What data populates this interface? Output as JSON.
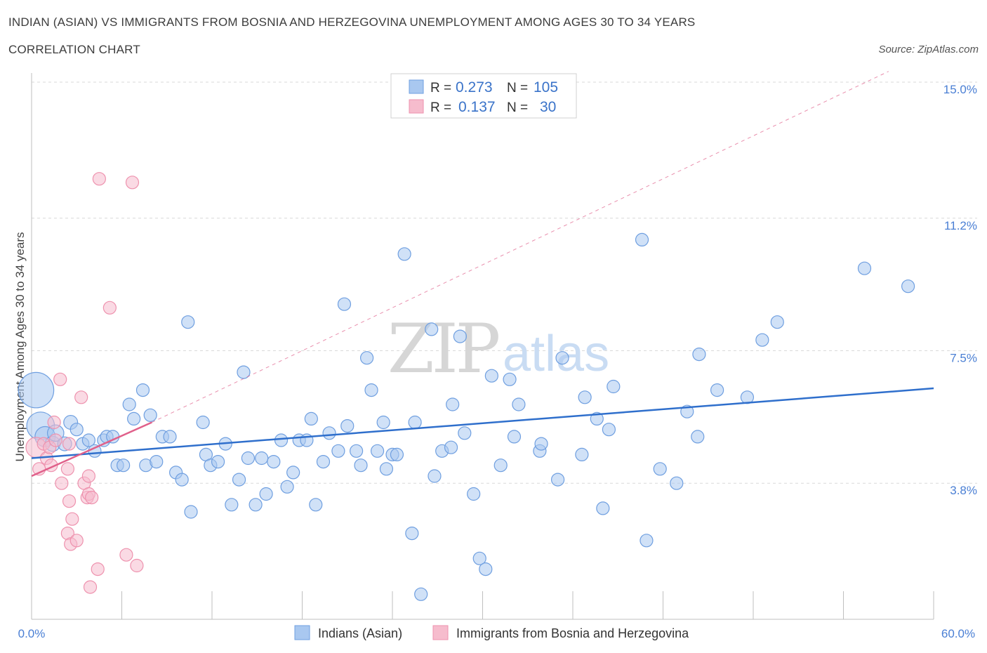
{
  "header": {
    "title": "INDIAN (ASIAN) VS IMMIGRANTS FROM BOSNIA AND HERZEGOVINA UNEMPLOYMENT AMONG AGES 30 TO 34 YEARS",
    "subtitle": "CORRELATION CHART",
    "source": "Source: ZipAtlas.com"
  },
  "watermark": {
    "zip": "ZIP",
    "atlas": "atlas"
  },
  "colors": {
    "blue_fill": "#a9c8f0",
    "blue_stroke": "#6f9fe0",
    "blue_line": "#2f6fcc",
    "pink_fill": "#f6bccd",
    "pink_stroke": "#ee92ae",
    "pink_line": "#e0608a",
    "grid": "#d9d9d9",
    "tick_text": "#4a7fd4"
  },
  "chart_data": {
    "type": "scatter",
    "title": "INDIAN (ASIAN) VS IMMIGRANTS FROM BOSNIA AND HERZEGOVINA UNEMPLOYMENT AMONG AGES 30 TO 34 YEARS",
    "xlabel": "",
    "ylabel": "Unemployment Among Ages 30 to 34 years",
    "xlim": [
      0,
      60
    ],
    "ylim": [
      0,
      15
    ],
    "x_tick_labels": {
      "left": "0.0%",
      "right": "60.0%"
    },
    "y_ticks": [
      {
        "value": 3.8,
        "label": "3.8%"
      },
      {
        "value": 7.5,
        "label": "7.5%"
      },
      {
        "value": 11.2,
        "label": "11.2%"
      },
      {
        "value": 15.0,
        "label": "15.0%"
      }
    ],
    "legend": [
      {
        "series": "Indians (Asian)",
        "r_label": "R =",
        "r_value": "0.273",
        "n_label": "N =",
        "n_value": "105"
      },
      {
        "series": "Immigrants from Bosnia and Herzegovina",
        "r_label": "R =",
        "r_value": "0.137",
        "n_label": "N =",
        "n_value": "30"
      }
    ],
    "series": [
      {
        "name": "Indians (Asian)",
        "trend": {
          "x0": 0,
          "y0": 4.5,
          "x1": 60,
          "y1": 6.45
        },
        "points": [
          [
            0.3,
            6.4,
            2.8
          ],
          [
            0.6,
            5.4,
            2.2
          ],
          [
            0.9,
            5.1,
            1.6
          ],
          [
            1.4,
            4.9,
            1.2
          ],
          [
            1.6,
            5.2,
            1.3
          ],
          [
            2.2,
            4.9,
            1.1
          ],
          [
            2.6,
            5.5,
            1.1
          ],
          [
            3.0,
            5.3,
            1.0
          ],
          [
            3.4,
            4.9,
            1.0
          ],
          [
            3.8,
            5.0,
            1.0
          ],
          [
            4.2,
            4.7,
            1.0
          ],
          [
            4.8,
            5.0,
            1.0
          ],
          [
            5.0,
            5.1,
            1.0
          ],
          [
            5.4,
            5.1,
            1.0
          ],
          [
            5.7,
            4.3,
            1.0
          ],
          [
            6.1,
            4.3,
            1.0
          ],
          [
            6.5,
            6.0,
            1.0
          ],
          [
            6.8,
            5.6,
            1.0
          ],
          [
            7.4,
            6.4,
            1.0
          ],
          [
            7.6,
            4.3,
            1.0
          ],
          [
            7.9,
            5.7,
            1.0
          ],
          [
            8.3,
            4.4,
            1.0
          ],
          [
            8.7,
            5.1,
            1.0
          ],
          [
            9.2,
            5.1,
            1.0
          ],
          [
            9.6,
            4.1,
            1.0
          ],
          [
            10.0,
            3.9,
            1.0
          ],
          [
            10.4,
            8.3,
            1.0
          ],
          [
            10.6,
            3.0,
            1.0
          ],
          [
            11.4,
            5.5,
            1.0
          ],
          [
            11.6,
            4.6,
            1.0
          ],
          [
            11.9,
            4.3,
            1.0
          ],
          [
            12.4,
            4.4,
            1.0
          ],
          [
            12.9,
            4.9,
            1.0
          ],
          [
            13.3,
            3.2,
            1.0
          ],
          [
            13.8,
            3.9,
            1.0
          ],
          [
            14.1,
            6.9,
            1.0
          ],
          [
            14.4,
            4.5,
            1.0
          ],
          [
            14.9,
            3.2,
            1.0
          ],
          [
            15.3,
            4.5,
            1.0
          ],
          [
            15.6,
            3.5,
            1.0
          ],
          [
            16.1,
            4.4,
            1.0
          ],
          [
            16.6,
            5.0,
            1.0
          ],
          [
            17.0,
            3.7,
            1.0
          ],
          [
            17.4,
            4.1,
            1.0
          ],
          [
            17.8,
            5.0,
            1.0
          ],
          [
            18.3,
            5.0,
            1.0
          ],
          [
            18.6,
            5.6,
            1.0
          ],
          [
            18.9,
            3.2,
            1.0
          ],
          [
            19.4,
            4.4,
            1.0
          ],
          [
            19.8,
            5.2,
            1.0
          ],
          [
            20.4,
            4.7,
            1.0
          ],
          [
            20.8,
            8.8,
            1.0
          ],
          [
            21.0,
            5.4,
            1.0
          ],
          [
            21.6,
            4.7,
            1.0
          ],
          [
            21.9,
            4.3,
            1.0
          ],
          [
            22.3,
            7.3,
            1.0
          ],
          [
            22.6,
            6.4,
            1.0
          ],
          [
            23.0,
            4.7,
            1.0
          ],
          [
            23.4,
            5.5,
            1.0
          ],
          [
            23.6,
            4.2,
            1.0
          ],
          [
            24.0,
            4.6,
            1.0
          ],
          [
            24.3,
            4.6,
            1.0
          ],
          [
            24.8,
            10.2,
            1.0
          ],
          [
            25.3,
            2.4,
            1.0
          ],
          [
            25.5,
            5.5,
            1.0
          ],
          [
            25.9,
            0.7,
            1.0
          ],
          [
            26.6,
            8.1,
            1.0
          ],
          [
            26.8,
            4.0,
            1.0
          ],
          [
            27.3,
            4.7,
            1.0
          ],
          [
            27.9,
            4.8,
            1.0
          ],
          [
            28.0,
            6.0,
            1.0
          ],
          [
            28.5,
            7.9,
            1.0
          ],
          [
            28.8,
            5.2,
            1.0
          ],
          [
            29.4,
            3.5,
            1.0
          ],
          [
            29.8,
            1.7,
            1.0
          ],
          [
            30.2,
            1.4,
            1.0
          ],
          [
            30.6,
            6.8,
            1.0
          ],
          [
            31.2,
            4.3,
            1.0
          ],
          [
            31.8,
            6.7,
            1.0
          ],
          [
            32.1,
            5.1,
            1.0
          ],
          [
            32.4,
            6.0,
            1.0
          ],
          [
            33.8,
            4.7,
            1.0
          ],
          [
            33.9,
            4.9,
            1.0
          ],
          [
            35.0,
            3.9,
            1.0
          ],
          [
            35.3,
            7.3,
            1.0
          ],
          [
            36.6,
            4.6,
            1.0
          ],
          [
            36.8,
            6.2,
            1.0
          ],
          [
            37.6,
            5.6,
            1.0
          ],
          [
            38.0,
            3.1,
            1.0
          ],
          [
            38.4,
            5.3,
            1.0
          ],
          [
            38.7,
            6.5,
            1.0
          ],
          [
            40.6,
            10.6,
            1.0
          ],
          [
            40.9,
            2.2,
            1.0
          ],
          [
            41.8,
            4.2,
            1.0
          ],
          [
            42.9,
            3.8,
            1.0
          ],
          [
            43.6,
            5.8,
            1.0
          ],
          [
            44.3,
            5.1,
            1.0
          ],
          [
            44.4,
            7.4,
            1.0
          ],
          [
            45.6,
            6.4,
            1.0
          ],
          [
            47.6,
            6.2,
            1.0
          ],
          [
            48.6,
            7.8,
            1.0
          ],
          [
            49.6,
            8.3,
            1.0
          ],
          [
            55.4,
            9.8,
            1.0
          ],
          [
            58.3,
            9.3,
            1.0
          ],
          [
            37.0,
            3.1,
            0.0
          ]
        ]
      },
      {
        "name": "Immigrants from Bosnia and Herzegovina",
        "trend": {
          "x0": 0,
          "y0": 4.0,
          "x1": 8,
          "y1": 5.5,
          "dashed_to_x": 57,
          "dashed_to_y": 15.3
        },
        "points": [
          [
            0.3,
            4.8,
            1.6
          ],
          [
            0.5,
            4.2,
            1.0
          ],
          [
            0.8,
            4.9,
            1.0
          ],
          [
            1.0,
            4.5,
            1.0
          ],
          [
            1.2,
            4.8,
            1.0
          ],
          [
            1.3,
            4.3,
            1.0
          ],
          [
            1.5,
            5.5,
            1.0
          ],
          [
            1.6,
            5.0,
            1.0
          ],
          [
            1.9,
            6.7,
            1.0
          ],
          [
            2.0,
            3.8,
            1.0
          ],
          [
            2.4,
            4.2,
            1.0
          ],
          [
            2.5,
            3.3,
            1.0
          ],
          [
            2.4,
            2.4,
            1.0
          ],
          [
            2.5,
            4.9,
            1.0
          ],
          [
            2.7,
            2.8,
            1.0
          ],
          [
            2.6,
            2.1,
            1.0
          ],
          [
            3.0,
            2.2,
            1.0
          ],
          [
            3.3,
            6.2,
            1.0
          ],
          [
            3.5,
            3.8,
            1.0
          ],
          [
            3.7,
            3.4,
            1.0
          ],
          [
            3.8,
            4.0,
            1.0
          ],
          [
            3.8,
            3.5,
            1.0
          ],
          [
            3.9,
            0.9,
            1.0
          ],
          [
            4.0,
            3.4,
            1.0
          ],
          [
            4.4,
            1.4,
            1.0
          ],
          [
            4.5,
            12.3,
            1.0
          ],
          [
            5.2,
            8.7,
            1.0
          ],
          [
            6.3,
            1.8,
            1.0
          ],
          [
            6.7,
            12.2,
            1.0
          ],
          [
            7.0,
            1.5,
            1.0
          ]
        ]
      }
    ]
  }
}
